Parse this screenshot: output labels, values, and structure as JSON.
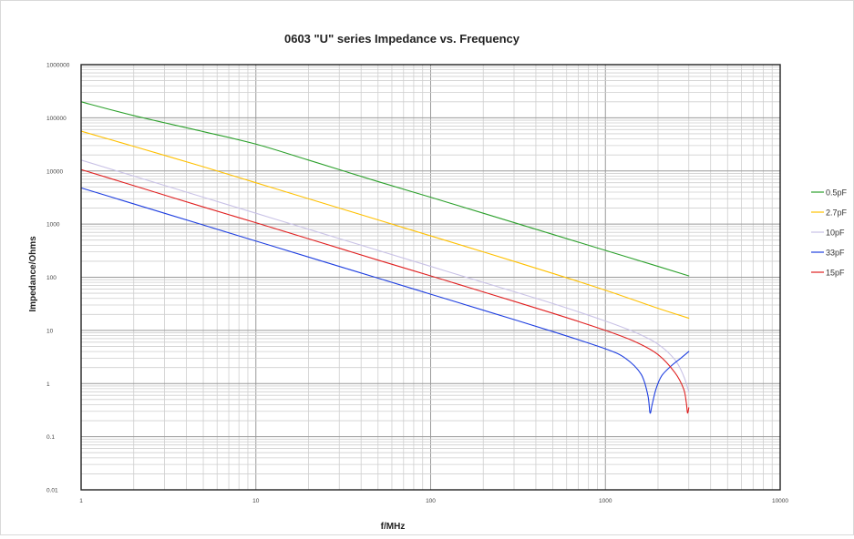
{
  "chart_data": {
    "type": "line",
    "title": "0603 \"U\" series Impedance vs. Frequency",
    "xlabel": "f/MHz",
    "ylabel": "Impedance/Ohms",
    "x_scale": "log",
    "y_scale": "log",
    "xlim": [
      1,
      10000
    ],
    "ylim": [
      0.01,
      1000000
    ],
    "x_ticks": [
      1,
      10,
      100,
      1000,
      10000
    ],
    "x_tick_labels": [
      "1",
      "10",
      "100",
      "1000",
      "10000"
    ],
    "y_ticks": [
      0.01,
      0.1,
      1,
      10,
      100,
      1000,
      10000,
      100000,
      1000000
    ],
    "y_tick_labels": [
      "0.01",
      "0.1",
      "1",
      "10",
      "100",
      "1000",
      "10000",
      "100000",
      "1000000"
    ],
    "grid": true,
    "legend_position": "right",
    "series": [
      {
        "name": "0.5pF",
        "color": "#2ca02c",
        "x": [
          1,
          2,
          5,
          10,
          20,
          50,
          100,
          200,
          500,
          1000,
          2000,
          3000
        ],
        "y": [
          200000,
          110000,
          55000,
          32000,
          16000,
          6300,
          3200,
          1600,
          640,
          320,
          160,
          106
        ]
      },
      {
        "name": "2.7pF",
        "color": "#ffc000",
        "x": [
          1,
          2,
          5,
          10,
          20,
          50,
          100,
          200,
          500,
          1000,
          2000,
          3000
        ],
        "y": [
          56000,
          29000,
          12000,
          6000,
          3000,
          1200,
          600,
          300,
          118,
          57,
          26,
          17
        ]
      },
      {
        "name": "10pF",
        "color": "#c9c2e6",
        "x": [
          1,
          2,
          5,
          10,
          20,
          50,
          100,
          200,
          500,
          1000,
          1500,
          2000,
          2500,
          2800,
          3000
        ],
        "y": [
          16000,
          8000,
          3200,
          1600,
          800,
          320,
          160,
          80,
          32,
          15,
          9,
          5.5,
          2.8,
          1.4,
          0.7
        ]
      },
      {
        "name": "33pF",
        "color": "#1f3fe0",
        "x": [
          1,
          2,
          5,
          10,
          20,
          50,
          100,
          200,
          500,
          1000,
          1300,
          1600,
          1750,
          1800,
          1850,
          1950,
          2100,
          2400,
          2700,
          3000
        ],
        "y": [
          4800,
          2400,
          960,
          480,
          240,
          96,
          48,
          24,
          9.5,
          4.5,
          3.0,
          1.5,
          0.6,
          0.28,
          0.4,
          0.8,
          1.4,
          2.2,
          3.0,
          4.0
        ]
      },
      {
        "name": "15pF",
        "color": "#e02020",
        "x": [
          1,
          2,
          5,
          10,
          20,
          50,
          100,
          200,
          500,
          1000,
          1500,
          2000,
          2500,
          2800,
          2900,
          2950,
          3000
        ],
        "y": [
          10600,
          5300,
          2100,
          1060,
          530,
          210,
          106,
          53,
          21,
          10,
          6,
          3.5,
          1.6,
          0.8,
          0.45,
          0.28,
          0.35
        ]
      }
    ]
  }
}
